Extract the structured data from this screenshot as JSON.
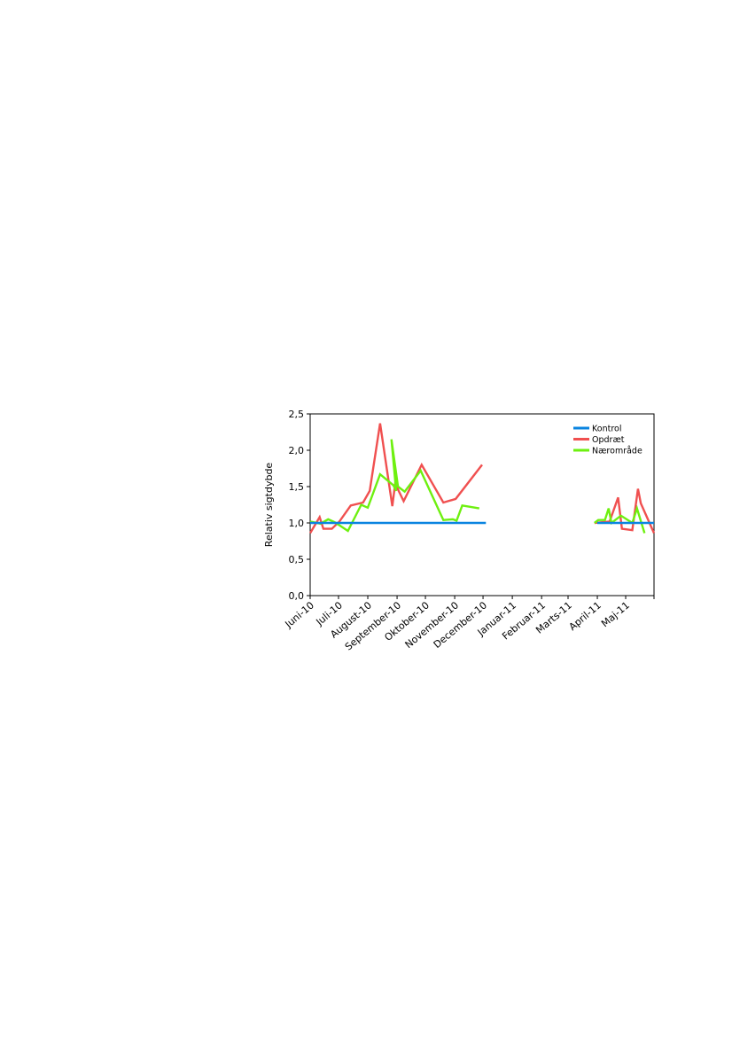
{
  "chart_data": {
    "type": "line",
    "title": "",
    "xlabel": "",
    "ylabel": "Relativ sigtdybde",
    "ylim": [
      0,
      2.5
    ],
    "yticks": [
      "0,0",
      "0,5",
      "1,0",
      "1,5",
      "2,0",
      "2,5"
    ],
    "ytick_values": [
      0,
      0.5,
      1.0,
      1.5,
      2.0,
      2.5
    ],
    "x_range": [
      "2010-06-01",
      "2011-05-31"
    ],
    "categories": [
      "Juni-10",
      "Juli-10",
      "August-10",
      "September-10",
      "Oktober-10",
      "November-10",
      "December-10",
      "Januar-11",
      "Februar-11",
      "Marts-11",
      "April-11",
      "Maj-11"
    ],
    "category_dates": [
      "2010-06-01",
      "2010-07-01",
      "2010-08-01",
      "2010-09-01",
      "2010-10-01",
      "2010-11-01",
      "2010-12-01",
      "2011-01-01",
      "2011-02-01",
      "2011-03-01",
      "2011-04-01",
      "2011-05-01"
    ],
    "grid": false,
    "legend_position": "top-right",
    "series": [
      {
        "name": "Kontrol",
        "color": "#0a84e0",
        "segments": [
          [
            [
              "2010-06-01",
              1.0
            ],
            [
              "2010-12-04",
              1.0
            ]
          ],
          [
            [
              "2011-04-01",
              1.0
            ],
            [
              "2011-05-31",
              1.0
            ]
          ]
        ]
      },
      {
        "name": "Opdræt",
        "color": "#f05050",
        "segments": [
          [
            [
              "2010-06-01",
              0.86
            ],
            [
              "2010-06-11",
              1.08
            ],
            [
              "2010-06-15",
              0.92
            ],
            [
              "2010-06-24",
              0.92
            ],
            [
              "2010-07-02",
              1.02
            ],
            [
              "2010-07-14",
              1.24
            ],
            [
              "2010-07-27",
              1.28
            ],
            [
              "2010-08-03",
              1.44
            ],
            [
              "2010-08-14",
              2.37
            ],
            [
              "2010-08-27",
              1.23
            ],
            [
              "2010-08-30",
              1.54
            ],
            [
              "2010-09-08",
              1.3
            ],
            [
              "2010-09-27",
              1.8
            ],
            [
              "2010-10-20",
              1.28
            ],
            [
              "2010-11-02",
              1.33
            ],
            [
              "2010-11-30",
              1.8
            ]
          ],
          [
            [
              "2011-03-29",
              1.0
            ],
            [
              "2011-04-14",
              1.02
            ],
            [
              "2011-04-23",
              1.35
            ],
            [
              "2011-04-27",
              0.92
            ],
            [
              "2011-05-08",
              0.9
            ],
            [
              "2011-05-14",
              1.47
            ],
            [
              "2011-05-17",
              1.27
            ],
            [
              "2011-05-31",
              0.86
            ]
          ]
        ]
      },
      {
        "name": "Nærområde",
        "color": "#6ef010",
        "segments": [
          [
            [
              "2010-06-01",
              1.02
            ],
            [
              "2010-06-12",
              0.99
            ],
            [
              "2010-06-20",
              1.05
            ],
            [
              "2010-06-27",
              1.01
            ],
            [
              "2010-07-11",
              0.89
            ],
            [
              "2010-07-25",
              1.25
            ],
            [
              "2010-08-01",
              1.21
            ],
            [
              "2010-08-14",
              1.67
            ],
            [
              "2010-08-28",
              1.52
            ],
            [
              "2010-08-31",
              1.44
            ],
            [
              "2010-08-26",
              2.15
            ],
            [
              "2010-09-02",
              1.5
            ],
            [
              "2010-09-09",
              1.43
            ],
            [
              "2010-09-26",
              1.72
            ],
            [
              "2010-10-20",
              1.04
            ],
            [
              "2010-10-30",
              1.05
            ],
            [
              "2010-11-03",
              1.03
            ],
            [
              "2010-11-09",
              1.24
            ],
            [
              "2010-11-27",
              1.2
            ]
          ],
          [
            [
              "2011-03-29",
              1.0
            ],
            [
              "2011-04-02",
              1.04
            ],
            [
              "2011-04-09",
              1.04
            ],
            [
              "2011-04-13",
              1.2
            ],
            [
              "2011-04-16",
              1.0
            ],
            [
              "2011-04-26",
              1.1
            ],
            [
              "2011-05-02",
              1.05
            ],
            [
              "2011-05-08",
              1.0
            ],
            [
              "2011-05-13",
              1.2
            ],
            [
              "2011-05-21",
              0.86
            ]
          ]
        ]
      }
    ]
  }
}
